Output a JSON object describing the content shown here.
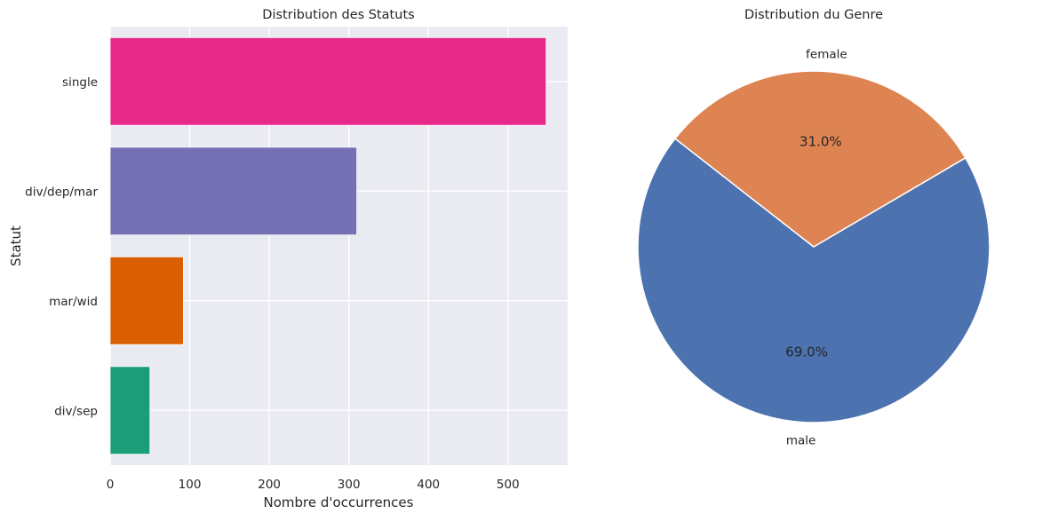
{
  "chart_data": [
    {
      "type": "bar",
      "orientation": "horizontal",
      "title": "Distribution des Statuts",
      "xlabel": "Nombre d'occurrences",
      "ylabel": "Statut",
      "categories": [
        "single",
        "div/dep/mar",
        "mar/wid",
        "div/sep"
      ],
      "values": [
        548,
        310,
        92,
        50
      ],
      "colors": [
        "#e7298a",
        "#7570b3",
        "#d95f02",
        "#1b9e77"
      ],
      "xlim": [
        0,
        575
      ],
      "xticks": [
        0,
        100,
        200,
        300,
        400,
        500
      ],
      "grid": true,
      "background": "#eaeaf2"
    },
    {
      "type": "pie",
      "title": "Distribution du Genre",
      "labels": [
        "male",
        "female"
      ],
      "values": [
        69.0,
        31.0
      ],
      "percent_labels": [
        "69.0%",
        "31.0%"
      ],
      "colors": [
        "#4c72b0",
        "#dd8452"
      ]
    }
  ]
}
